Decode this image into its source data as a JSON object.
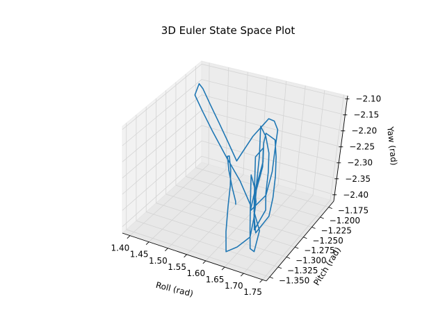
{
  "chart_data": {
    "type": "line",
    "projection": "3d",
    "title": "3D Euler State Space Plot",
    "xlabel": "Roll (rad)",
    "ylabel": "Pitch (rad)",
    "zlabel": "Yaw (rad)",
    "xlim": [
      1.38,
      1.76
    ],
    "ylim": [
      -1.36,
      -1.16
    ],
    "zlim": [
      -2.42,
      -2.09
    ],
    "xticks": [
      1.4,
      1.45,
      1.5,
      1.55,
      1.6,
      1.65,
      1.7,
      1.75
    ],
    "xtick_labels": [
      "1.40",
      "1.45",
      "1.50",
      "1.55",
      "1.60",
      "1.65",
      "1.70",
      "1.75"
    ],
    "yticks": [
      -1.35,
      -1.325,
      -1.3,
      -1.275,
      -1.25,
      -1.225,
      -1.2,
      -1.175
    ],
    "ytick_labels": [
      "−1.350",
      "−1.325",
      "−1.300",
      "−1.275",
      "−1.250",
      "−1.225",
      "−1.200",
      "−1.175"
    ],
    "zticks": [
      -2.4,
      -2.35,
      -2.3,
      -2.25,
      -2.2,
      -2.15,
      -2.1
    ],
    "ztick_labels": [
      "−2.40",
      "−2.35",
      "−2.30",
      "−2.25",
      "−2.20",
      "−2.15",
      "−2.10"
    ],
    "grid": true,
    "line_color": "#1f77b4",
    "series": [
      {
        "x": [
          1.66,
          1.62,
          1.57,
          1.52,
          1.47,
          1.43,
          1.415,
          1.42,
          1.45,
          1.49,
          1.53,
          1.57,
          1.59,
          1.61,
          1.62,
          1.64,
          1.66,
          1.68,
          1.69,
          1.67,
          1.65,
          1.64,
          1.62,
          1.6,
          1.59,
          1.61,
          1.64,
          1.66,
          1.68,
          1.7,
          1.69,
          1.67,
          1.65,
          1.64,
          1.62,
          1.61,
          1.63,
          1.65,
          1.67,
          1.69,
          1.7,
          1.68,
          1.66,
          1.64,
          1.63,
          1.61,
          1.6,
          1.62,
          1.64,
          1.66,
          1.69,
          1.7,
          1.68,
          1.66,
          1.64,
          1.62,
          1.61,
          1.63,
          1.65,
          1.66,
          1.67,
          1.65,
          1.63,
          1.61,
          1.59,
          1.57,
          1.55,
          1.53,
          1.52,
          1.54,
          1.57,
          1.6,
          1.62
        ],
        "y": [
          -1.3,
          -1.29,
          -1.28,
          -1.265,
          -1.245,
          -1.225,
          -1.2,
          -1.195,
          -1.205,
          -1.22,
          -1.235,
          -1.25,
          -1.23,
          -1.21,
          -1.205,
          -1.215,
          -1.24,
          -1.265,
          -1.29,
          -1.31,
          -1.29,
          -1.265,
          -1.24,
          -1.22,
          -1.21,
          -1.215,
          -1.235,
          -1.255,
          -1.28,
          -1.3,
          -1.32,
          -1.3,
          -1.275,
          -1.25,
          -1.23,
          -1.215,
          -1.21,
          -1.225,
          -1.245,
          -1.27,
          -1.29,
          -1.305,
          -1.29,
          -1.265,
          -1.24,
          -1.22,
          -1.23,
          -1.25,
          -1.27,
          -1.29,
          -1.305,
          -1.33,
          -1.32,
          -1.3,
          -1.28,
          -1.26,
          -1.25,
          -1.26,
          -1.275,
          -1.29,
          -1.31,
          -1.325,
          -1.335,
          -1.315,
          -1.29,
          -1.265,
          -1.245,
          -1.23,
          -1.225,
          -1.24,
          -1.26,
          -1.28,
          -1.3
        ],
        "z": [
          -2.3,
          -2.25,
          -2.2,
          -2.16,
          -2.13,
          -2.115,
          -2.11,
          -2.13,
          -2.16,
          -2.19,
          -2.22,
          -2.25,
          -2.19,
          -2.15,
          -2.16,
          -2.17,
          -2.2,
          -2.23,
          -2.27,
          -2.3,
          -2.33,
          -2.28,
          -2.23,
          -2.19,
          -2.18,
          -2.2,
          -2.22,
          -2.25,
          -2.28,
          -2.3,
          -2.34,
          -2.31,
          -2.27,
          -2.23,
          -2.2,
          -2.19,
          -2.21,
          -2.24,
          -2.27,
          -2.3,
          -2.33,
          -2.37,
          -2.34,
          -2.3,
          -2.26,
          -2.23,
          -2.25,
          -2.27,
          -2.3,
          -2.33,
          -2.36,
          -2.39,
          -2.4,
          -2.37,
          -2.33,
          -2.3,
          -2.28,
          -2.3,
          -2.32,
          -2.35,
          -2.38,
          -2.4,
          -2.41,
          -2.38,
          -2.34,
          -2.31,
          -2.29,
          -2.27,
          -2.28,
          -2.3,
          -2.32,
          -2.33,
          -2.31
        ]
      }
    ]
  }
}
